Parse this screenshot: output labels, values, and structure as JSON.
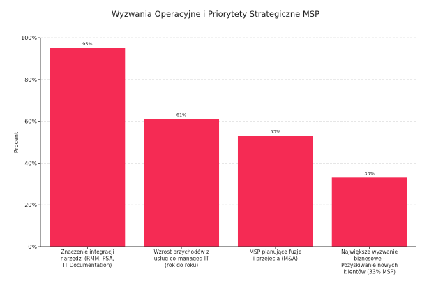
{
  "chart_data": {
    "type": "bar",
    "title": "Wyzwania Operacyjne i Priorytety Strategiczne MSP",
    "xlabel": "",
    "ylabel": "Procent",
    "ylim": [
      0,
      100
    ],
    "yticks": [
      0,
      20,
      40,
      60,
      80,
      100
    ],
    "ytick_labels": [
      "0%",
      "20%",
      "40%",
      "60%",
      "80%",
      "100%"
    ],
    "grid": true,
    "legend": "none",
    "bar_color": "#F52B54",
    "categories": [
      [
        "Znaczenie integracji",
        "narzędzi (RMM, PSA,",
        "IT Documentation)"
      ],
      [
        "Wzrost przychodów z",
        "usług co-managed IT",
        "(rok do roku)"
      ],
      [
        "MSP planujące fuzje",
        "i przejęcia (M&A)"
      ],
      [
        "Największe wyzwanie",
        "biznesowe -",
        "Pozyskiwanie nowych",
        "klientów (33% MSP)"
      ]
    ],
    "values": [
      95,
      61,
      53,
      33
    ],
    "data_labels": [
      "95%",
      "61%",
      "53%",
      "33%"
    ]
  }
}
